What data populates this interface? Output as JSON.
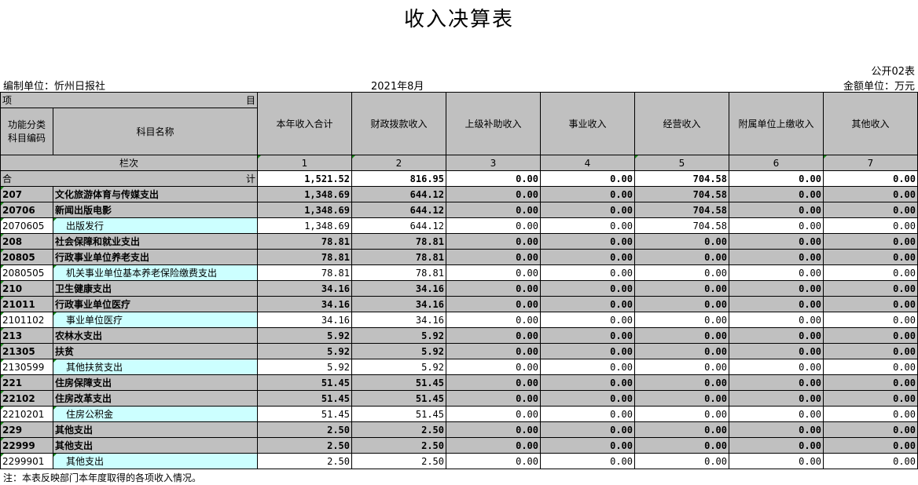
{
  "title": "收入决算表",
  "form_no": "公开02表",
  "unit_label": "编制单位：忻州日报社",
  "period": "2021年8月",
  "currency": "金额单位：万元",
  "header": {
    "xiang": "项",
    "mu": "目",
    "code": "功能分类科目编码",
    "name": "科目名称",
    "columns": [
      "本年收入合计",
      "财政拨款收入",
      "上级补助收入",
      "事业收入",
      "经营收入",
      "附属单位上缴收入",
      "其他收入"
    ],
    "lanci": "栏次",
    "col_nums": [
      "1",
      "2",
      "3",
      "4",
      "5",
      "6",
      "7"
    ],
    "he": "合",
    "ji": "计"
  },
  "total": [
    "1,521.52",
    "816.95",
    "0.00",
    "0.00",
    "704.58",
    "0.00",
    "0.00"
  ],
  "rows": [
    {
      "code": "207",
      "name": "文化旅游体育与传媒支出",
      "level": "bold",
      "values": [
        "1,348.69",
        "644.12",
        "0.00",
        "0.00",
        "704.58",
        "0.00",
        "0.00"
      ]
    },
    {
      "code": "20706",
      "name": "新闻出版电影",
      "level": "bold",
      "values": [
        "1,348.69",
        "644.12",
        "0.00",
        "0.00",
        "704.58",
        "0.00",
        "0.00"
      ]
    },
    {
      "code": "2070605",
      "name": "出版发行",
      "level": "detail",
      "values": [
        "1,348.69",
        "644.12",
        "0.00",
        "0.00",
        "704.58",
        "0.00",
        "0.00"
      ]
    },
    {
      "code": "208",
      "name": "社会保障和就业支出",
      "level": "bold",
      "values": [
        "78.81",
        "78.81",
        "0.00",
        "0.00",
        "0.00",
        "0.00",
        "0.00"
      ]
    },
    {
      "code": "20805",
      "name": "行政事业单位养老支出",
      "level": "bold",
      "values": [
        "78.81",
        "78.81",
        "0.00",
        "0.00",
        "0.00",
        "0.00",
        "0.00"
      ]
    },
    {
      "code": "2080505",
      "name": "机关事业单位基本养老保险缴费支出",
      "level": "detail",
      "values": [
        "78.81",
        "78.81",
        "0.00",
        "0.00",
        "0.00",
        "0.00",
        "0.00"
      ]
    },
    {
      "code": "210",
      "name": "卫生健康支出",
      "level": "bold",
      "values": [
        "34.16",
        "34.16",
        "0.00",
        "0.00",
        "0.00",
        "0.00",
        "0.00"
      ]
    },
    {
      "code": "21011",
      "name": "行政事业单位医疗",
      "level": "bold",
      "values": [
        "34.16",
        "34.16",
        "0.00",
        "0.00",
        "0.00",
        "0.00",
        "0.00"
      ]
    },
    {
      "code": "2101102",
      "name": "事业单位医疗",
      "level": "detail",
      "values": [
        "34.16",
        "34.16",
        "0.00",
        "0.00",
        "0.00",
        "0.00",
        "0.00"
      ]
    },
    {
      "code": "213",
      "name": "农林水支出",
      "level": "bold",
      "values": [
        "5.92",
        "5.92",
        "0.00",
        "0.00",
        "0.00",
        "0.00",
        "0.00"
      ]
    },
    {
      "code": "21305",
      "name": "扶贫",
      "level": "bold",
      "values": [
        "5.92",
        "5.92",
        "0.00",
        "0.00",
        "0.00",
        "0.00",
        "0.00"
      ]
    },
    {
      "code": "2130599",
      "name": "其他扶贫支出",
      "level": "detail",
      "values": [
        "5.92",
        "5.92",
        "0.00",
        "0.00",
        "0.00",
        "0.00",
        "0.00"
      ]
    },
    {
      "code": "221",
      "name": "住房保障支出",
      "level": "bold",
      "values": [
        "51.45",
        "51.45",
        "0.00",
        "0.00",
        "0.00",
        "0.00",
        "0.00"
      ]
    },
    {
      "code": "22102",
      "name": "住房改革支出",
      "level": "bold",
      "values": [
        "51.45",
        "51.45",
        "0.00",
        "0.00",
        "0.00",
        "0.00",
        "0.00"
      ]
    },
    {
      "code": "2210201",
      "name": "住房公积金",
      "level": "detail",
      "values": [
        "51.45",
        "51.45",
        "0.00",
        "0.00",
        "0.00",
        "0.00",
        "0.00"
      ]
    },
    {
      "code": "229",
      "name": "其他支出",
      "level": "bold",
      "values": [
        "2.50",
        "2.50",
        "0.00",
        "0.00",
        "0.00",
        "0.00",
        "0.00"
      ]
    },
    {
      "code": "22999",
      "name": "其他支出",
      "level": "bold",
      "values": [
        "2.50",
        "2.50",
        "0.00",
        "0.00",
        "0.00",
        "0.00",
        "0.00"
      ]
    },
    {
      "code": "2299901",
      "name": "其他支出",
      "level": "detail",
      "values": [
        "2.50",
        "2.50",
        "0.00",
        "0.00",
        "0.00",
        "0.00",
        "0.00"
      ]
    }
  ],
  "note": "注：本表反映部门本年度取得的各项收入情况。",
  "colors": {
    "header_gray": "#c0c0c0",
    "detail_cyan": "#ccffff"
  }
}
